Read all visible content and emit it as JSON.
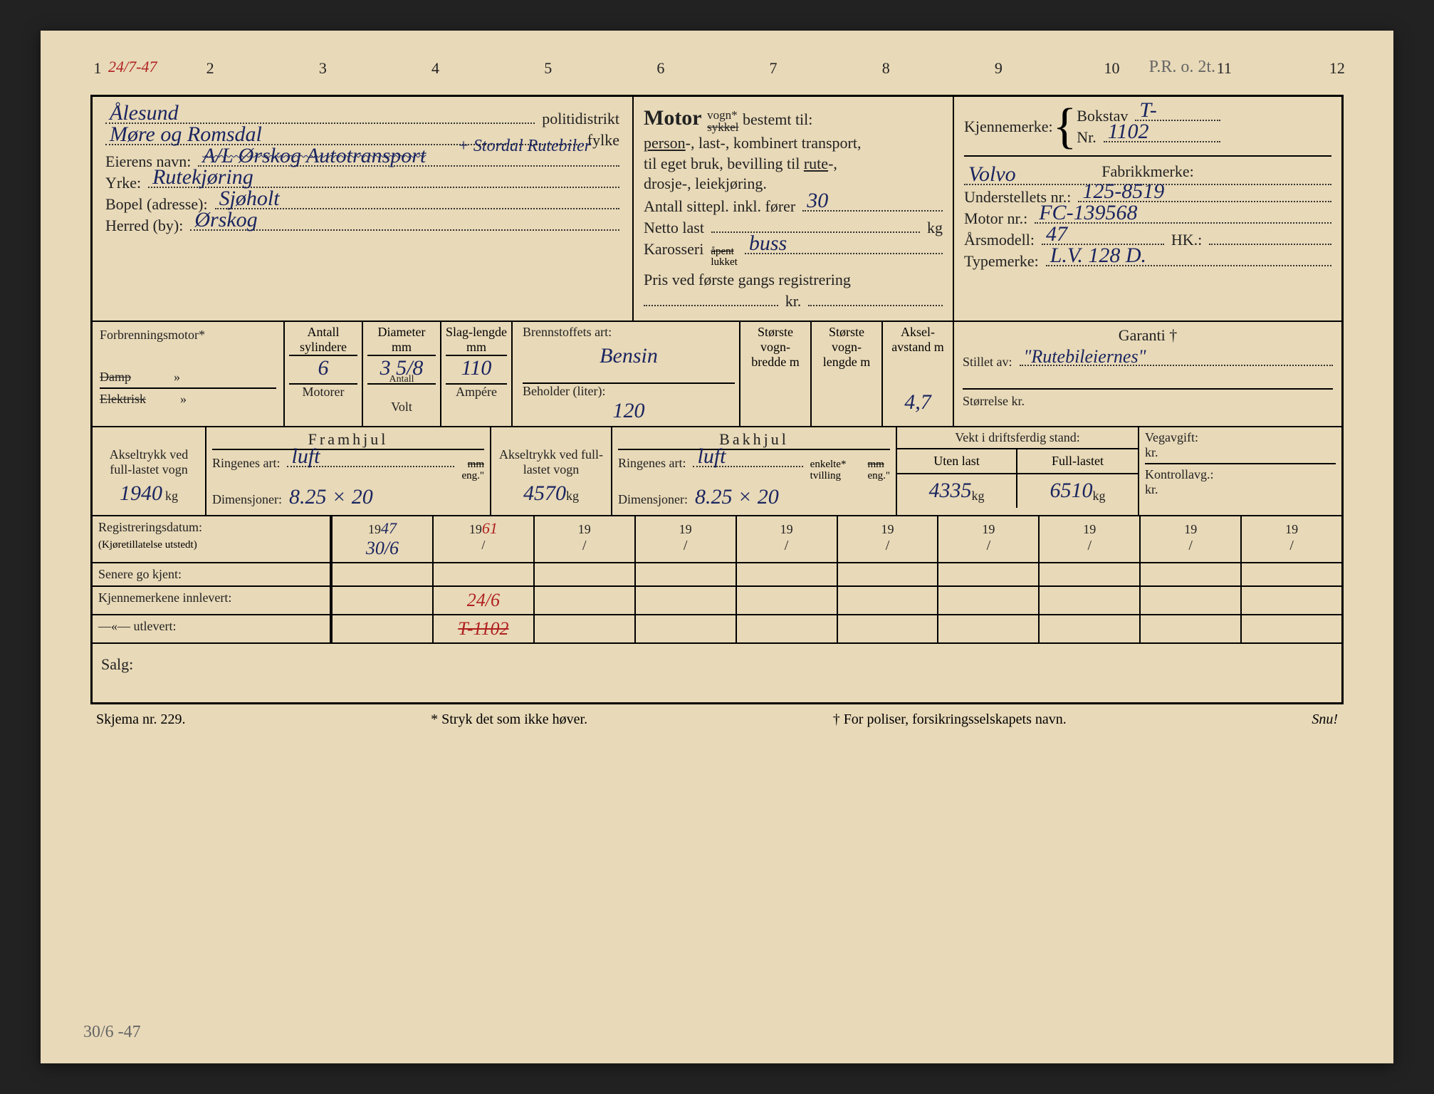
{
  "ruler": [
    "1",
    "2",
    "3",
    "4",
    "5",
    "6",
    "7",
    "8",
    "9",
    "10",
    "11",
    "12"
  ],
  "corner_tl": "24/7-47",
  "corner_tr": "P.R. o. 2t.",
  "corner_bl": "30/6 -47",
  "colors": {
    "paper": "#e8d9b8",
    "ink_printed": "#222222",
    "ink_hand": "#1a2560",
    "ink_red": "#b02020",
    "pencil": "#666666",
    "border": "#000000"
  },
  "header": {
    "politidistrikt_label": "politidistrikt",
    "politidistrikt_value": "Ålesund",
    "fylke_label": "fylke",
    "fylke_value": "Møre og Romsdal",
    "eier_label": "Eierens navn:",
    "eier_value": "A/L Ørskog Autotransport",
    "eier_correction": "+ Stordal Rutebiler",
    "yrke_label": "Yrke:",
    "yrke_value": "Rutekjøring",
    "bopel_label": "Bopel (adresse):",
    "bopel_value": "Sjøholt",
    "herred_label": "Herred (by):",
    "herred_value": "Ørskog"
  },
  "motor_block": {
    "title_pre": "Motor",
    "title_vogn": "vogn*",
    "title_sykkel": "sykkel",
    "title_rest": "bestemt til:",
    "line1": "person-, last-, kombinert transport,",
    "line2": "til eget bruk, bevilling til rute-,",
    "line3": "drosje-, leiekjøring.",
    "antall_sitte_label": "Antall sittepl. inkl. fører",
    "antall_sitte_value": "30",
    "netto_label": "Netto last",
    "netto_unit": "kg",
    "netto_value": "",
    "karosseri_label": "Karosseri",
    "karosseri_apent": "åpent",
    "karosseri_lukket": "lukket",
    "karosseri_value": "buss",
    "pris_label": "Pris ved første gangs registrering",
    "pris_value": "",
    "kr_label": "kr."
  },
  "right_block": {
    "kjennemerke_label": "Kjennemerke:",
    "bokstav_label": "Bokstav",
    "bokstav_value": "T-",
    "nr_label": "Nr.",
    "nr_value": "1102",
    "fabrikkmerke_label": "Fabrikkmerke:",
    "fabrikkmerke_value": "Volvo",
    "understell_label": "Understellets nr.:",
    "understell_value": "125-8519",
    "motor_nr_label": "Motor nr.:",
    "motor_nr_value": "FC-139568",
    "arsmodell_label": "Årsmodell:",
    "arsmodell_value": "47",
    "hk_label": "HK.:",
    "hk_value": "",
    "typemerke_label": "Typemerke:",
    "typemerke_value": "L.V. 128 D."
  },
  "tech": {
    "forbrenning_label": "Forbrenningsmotor*",
    "damp_label": "Damp",
    "elektrisk_label": "Elektrisk",
    "antall_sylindere": "Antall sylindere",
    "antall_sylindere_v": "6",
    "diameter": "Diameter mm",
    "diameter_v": "3 5/8",
    "slaglengde": "Slag-lengde mm",
    "slaglengde_v": "110",
    "antall": "Antall",
    "motorer": "Motorer",
    "volt": "Volt",
    "ampere": "Ampére",
    "brennstoff_label": "Brennstoffets art:",
    "brennstoff_value": "Bensin",
    "beholder_label": "Beholder (liter):",
    "beholder_value": "120",
    "bredde_label": "Største vogn-bredde m",
    "bredde_v": "",
    "lengde_label": "Største vogn-lengde m",
    "lengde_v": "",
    "aksel_label": "Aksel-avstand m",
    "aksel_v": "4,7",
    "garanti_label": "Garanti †",
    "stillet_label": "Stillet av:",
    "stillet_value": "\"Rutebileiernes\"",
    "storrelse_label": "Størrelse kr."
  },
  "wheels": {
    "fram_label": "Framhjul",
    "bak_label": "Bakhjul",
    "akseltrykk_label": "Akseltrykk ved full-lastet vogn",
    "fram_aksel_v": "1940",
    "bak_aksel_v": "4570",
    "kg": "kg",
    "ringenes_label": "Ringenes art:",
    "ringenes_v": "luft",
    "dimensjoner_label": "Dimensjoner:",
    "dim_fram": "8.25 × 20",
    "dim_bak": "8.25 × 20",
    "mm": "mm",
    "eng": "eng.\"",
    "enkelte": "enkelte*",
    "tvilling": "tvilling",
    "vekt_label": "Vekt i driftsferdig stand:",
    "uten_label": "Uten last",
    "full_label": "Full-lastet",
    "uten_v": "4335",
    "full_v": "6510",
    "vegavgift_label": "Vegavgift:",
    "kontroll_label": "Kontrollavg.:",
    "kr": "kr."
  },
  "registration": {
    "reg_label": "Registreringsdatum:",
    "reg_sub": "(Kjøretillatelse utstedt)",
    "senere_label": "Senere go kjent:",
    "innlevert_label": "Kjennemerkene innlevert:",
    "utlevert_label": "—«—          utlevert:",
    "years": [
      "47",
      "61",
      "",
      "",
      "",
      "",
      "",
      "",
      "",
      ""
    ],
    "row_reg": [
      "30/6",
      "",
      "",
      "",
      "",
      "",
      "",
      "",
      "",
      ""
    ],
    "row_senere": [
      "",
      "",
      "",
      "",
      "",
      "",
      "",
      "",
      "",
      ""
    ],
    "row_innlevert": [
      "",
      "24/6",
      "",
      "",
      "",
      "",
      "",
      "",
      "",
      ""
    ],
    "row_utlevert": [
      "",
      "T-1102",
      "",
      "",
      "",
      "",
      "",
      "",
      "",
      ""
    ]
  },
  "salg_label": "Salg:",
  "footer": {
    "skjema": "Skjema nr. 229.",
    "star": "* Stryk det som ikke høver.",
    "dagger": "† For poliser, forsikringsselskapets navn.",
    "snu": "Snu!"
  }
}
